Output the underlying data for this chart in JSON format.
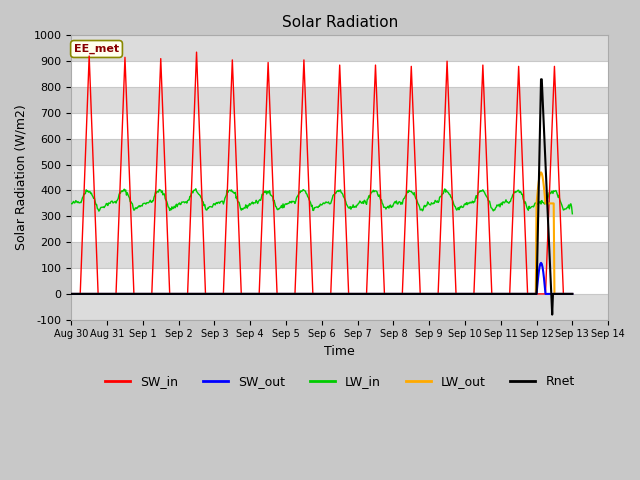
{
  "title": "Solar Radiation",
  "xlabel": "Time",
  "ylabel": "Solar Radiation (W/m2)",
  "ylim": [
    -100,
    1000
  ],
  "annotation_text": "EE_met",
  "annotation_box_color": "#ffffee",
  "annotation_border_color": "#888800",
  "legend_entries": [
    "SW_in",
    "SW_out",
    "LW_in",
    "LW_out",
    "Rnet"
  ],
  "line_colors": {
    "SW_in": "#ff0000",
    "SW_out": "#0000ff",
    "LW_in": "#00cc00",
    "LW_out": "#ffaa00",
    "Rnet": "#000000"
  },
  "SW_in_peaks": [
    920,
    915,
    910,
    935,
    905,
    895,
    905,
    885,
    885,
    880,
    900,
    885,
    880,
    880
  ],
  "tick_labels": [
    "Aug 30",
    "Aug 31",
    "Sep 1",
    "Sep 2",
    "Sep 3",
    "Sep 4",
    "Sep 5",
    "Sep 6",
    "Sep 7",
    "Sep 8",
    "Sep 9",
    "Sep 10",
    "Sep 11",
    "Sep 12",
    "Sep 13",
    "Sep 14"
  ],
  "yticks": [
    -100,
    0,
    100,
    200,
    300,
    400,
    500,
    600,
    700,
    800,
    900,
    1000
  ],
  "bg_color": "#c8c8c8",
  "plot_bg_color": "#ffffff",
  "alt_band_color": "#dcdcdc",
  "grid_color": "#c8c8c8"
}
